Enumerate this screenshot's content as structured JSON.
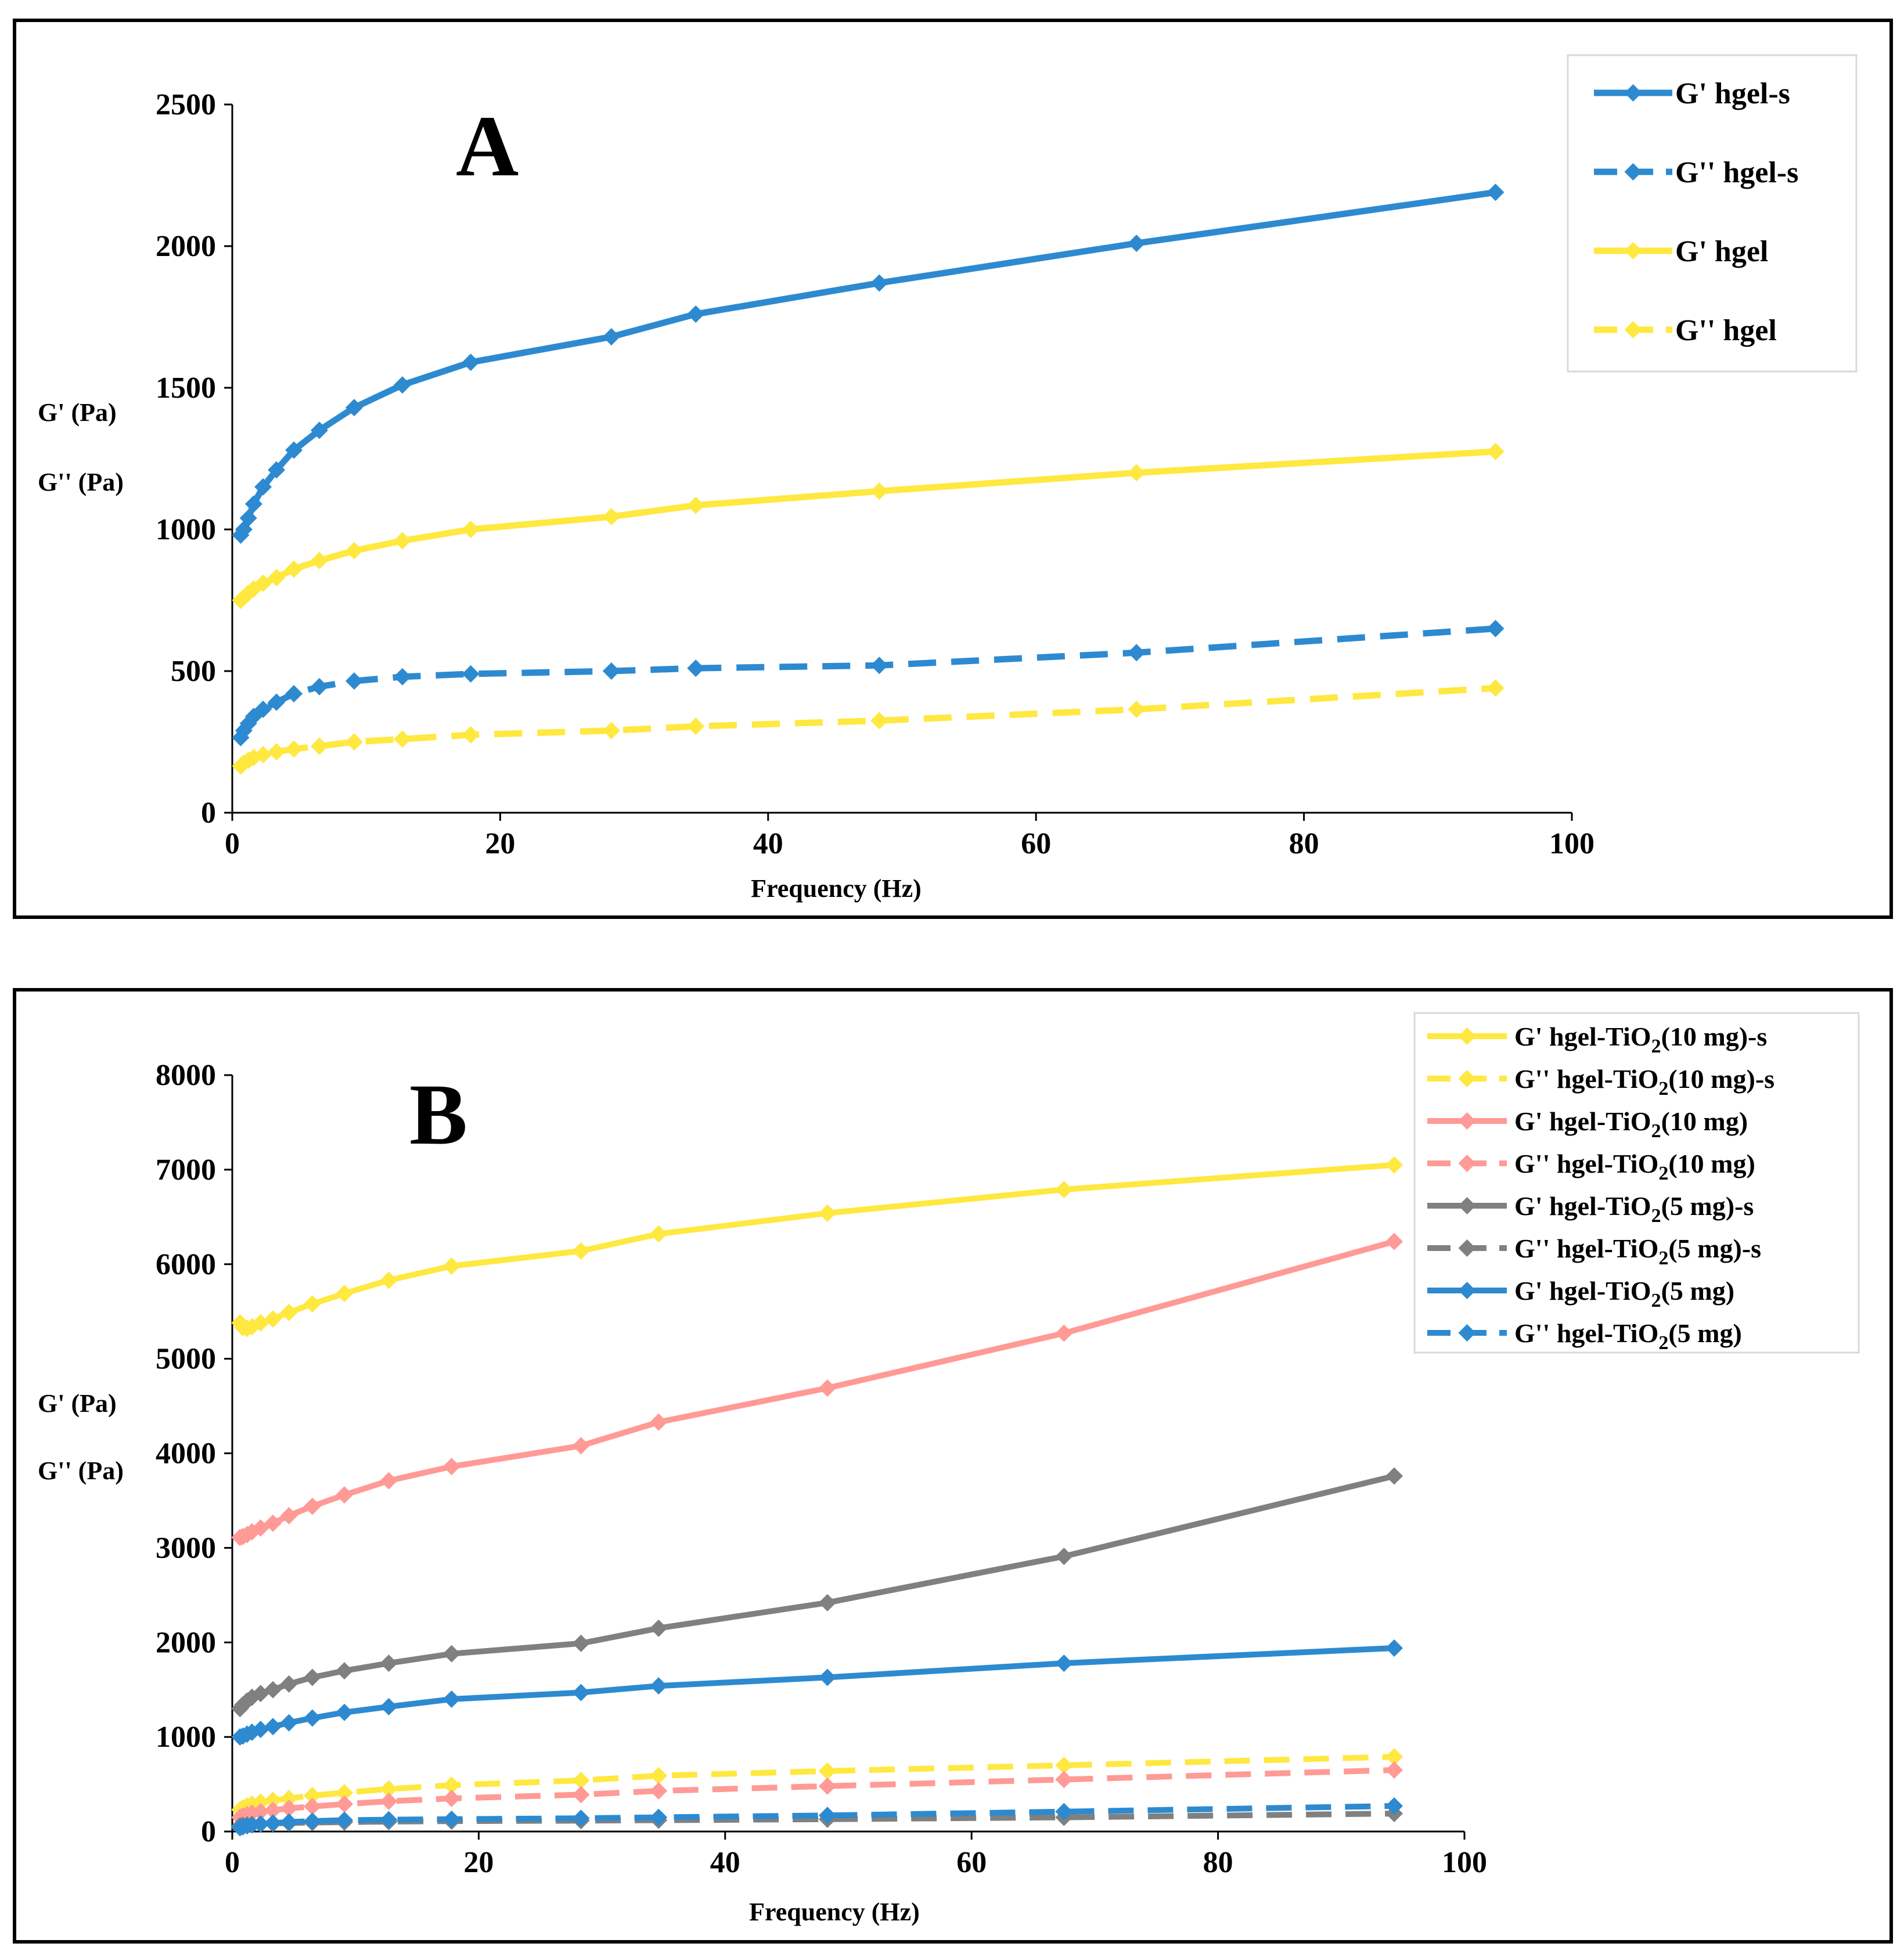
{
  "chart_data": [
    {
      "type": "line",
      "panel_label": "A",
      "xlabel": "Frequency (Hz)",
      "ylabel": [
        "G' (Pa)",
        "G'' (Pa)"
      ],
      "xlim": [
        0,
        100
      ],
      "ylim": [
        0,
        2500
      ],
      "xticks": [
        "0",
        "20",
        "40",
        "60",
        "80",
        "100"
      ],
      "yticks": [
        "0",
        "500",
        "1000",
        "1500",
        "2000",
        "2500"
      ],
      "grid": false,
      "legend_position": "top-right",
      "x": [
        0.63,
        0.86,
        1.2,
        1.6,
        2.3,
        3.3,
        4.6,
        6.5,
        9.1,
        12.7,
        17.8,
        28.3,
        34.6,
        48.3,
        67.5,
        94.3
      ],
      "series": [
        {
          "name": "G' hgel-s",
          "color": "#2d8ad0",
          "dash": false,
          "values": [
            980,
            1000,
            1040,
            1090,
            1150,
            1210,
            1280,
            1350,
            1430,
            1510,
            1590,
            1680,
            1760,
            1870,
            2010,
            2190
          ]
        },
        {
          "name": "G'' hgel-s",
          "color": "#2d8ad0",
          "dash": true,
          "values": [
            265,
            290,
            315,
            340,
            365,
            390,
            420,
            445,
            465,
            480,
            490,
            500,
            510,
            520,
            565,
            650
          ]
        },
        {
          "name": "G' hgel",
          "color": "#ffe840",
          "dash": false,
          "values": [
            750,
            760,
            775,
            790,
            810,
            830,
            860,
            890,
            925,
            960,
            1000,
            1045,
            1085,
            1135,
            1200,
            1275
          ]
        },
        {
          "name": "G'' hgel",
          "color": "#ffe840",
          "dash": true,
          "values": [
            165,
            175,
            185,
            195,
            205,
            215,
            225,
            235,
            250,
            260,
            275,
            290,
            305,
            325,
            365,
            440
          ]
        }
      ]
    },
    {
      "type": "line",
      "panel_label": "B",
      "xlabel": "Frequency (Hz)",
      "ylabel": [
        "G' (Pa)",
        "G'' (Pa)"
      ],
      "xlim": [
        0,
        100
      ],
      "ylim": [
        0,
        8000
      ],
      "xticks": [
        "0",
        "20",
        "40",
        "60",
        "80",
        "100"
      ],
      "yticks": [
        "0",
        "1000",
        "2000",
        "3000",
        "4000",
        "5000",
        "6000",
        "7000",
        "8000"
      ],
      "grid": false,
      "legend_position": "top-right",
      "x": [
        0.63,
        0.86,
        1.2,
        1.6,
        2.3,
        3.3,
        4.6,
        6.5,
        9.1,
        12.7,
        17.8,
        28.3,
        34.6,
        48.3,
        67.5,
        94.3
      ],
      "series": [
        {
          "name": "G' hgel-TiO2(10 mg)-s",
          "name_main": "G' hgel-TiO",
          "name_sub": "2",
          "name_tail": "(10 mg)-s",
          "color": "#ffe840",
          "dash": false,
          "values": [
            5380,
            5330,
            5320,
            5340,
            5380,
            5420,
            5490,
            5580,
            5690,
            5830,
            5980,
            6140,
            6320,
            6540,
            6790,
            7050
          ]
        },
        {
          "name": "G'' hgel-TiO2(10 mg)-s",
          "name_main": "G'' hgel-TiO",
          "name_sub": "2",
          "name_tail": "(10 mg)-s",
          "color": "#ffe840",
          "dash": true,
          "values": [
            230,
            250,
            270,
            290,
            310,
            330,
            350,
            380,
            410,
            450,
            490,
            540,
            590,
            640,
            700,
            790
          ]
        },
        {
          "name": "G' hgel-TiO2(10 mg)",
          "name_main": "G' hgel-TiO",
          "name_sub": "2",
          "name_tail": "(10 mg)",
          "color": "#ff9a96",
          "dash": false,
          "values": [
            3110,
            3120,
            3140,
            3170,
            3210,
            3260,
            3340,
            3440,
            3560,
            3710,
            3860,
            4080,
            4330,
            4690,
            5270,
            6240
          ]
        },
        {
          "name": "G'' hgel-TiO2(10 mg)",
          "name_main": "G'' hgel-TiO",
          "name_sub": "2",
          "name_tail": "(10 mg)",
          "color": "#ff9a96",
          "dash": true,
          "values": [
            150,
            165,
            180,
            195,
            210,
            225,
            245,
            265,
            290,
            320,
            350,
            390,
            430,
            480,
            550,
            650
          ]
        },
        {
          "name": "G' hgel-TiO2(5 mg)-s",
          "name_main": "G' hgel-TiO",
          "name_sub": "2",
          "name_tail": "(5 mg)-s",
          "color": "#808080",
          "dash": false,
          "values": [
            1300,
            1340,
            1380,
            1420,
            1460,
            1500,
            1560,
            1630,
            1700,
            1780,
            1880,
            1990,
            2150,
            2420,
            2910,
            3760
          ]
        },
        {
          "name": "G'' hgel-TiO2(5 mg)-s",
          "name_main": "G'' hgel-TiO",
          "name_sub": "2",
          "name_tail": "(5 mg)-s",
          "color": "#808080",
          "dash": true,
          "values": [
            60,
            65,
            70,
            75,
            80,
            85,
            90,
            95,
            100,
            105,
            110,
            115,
            120,
            130,
            150,
            190
          ]
        },
        {
          "name": "G' hgel-TiO2(5 mg)",
          "name_main": "G' hgel-TiO",
          "name_sub": "2",
          "name_tail": "(5 mg)",
          "color": "#2d8ad0",
          "dash": false,
          "values": [
            1000,
            1010,
            1030,
            1050,
            1080,
            1110,
            1150,
            1200,
            1260,
            1320,
            1400,
            1470,
            1540,
            1630,
            1780,
            1940
          ]
        },
        {
          "name": "G'' hgel-TiO2(5 mg)",
          "name_main": "G'' hgel-TiO",
          "name_sub": "2",
          "name_tail": "(5 mg)",
          "color": "#2d8ad0",
          "dash": true,
          "values": [
            40,
            50,
            60,
            70,
            80,
            90,
            100,
            110,
            120,
            125,
            130,
            140,
            150,
            170,
            210,
            270
          ]
        }
      ]
    }
  ]
}
